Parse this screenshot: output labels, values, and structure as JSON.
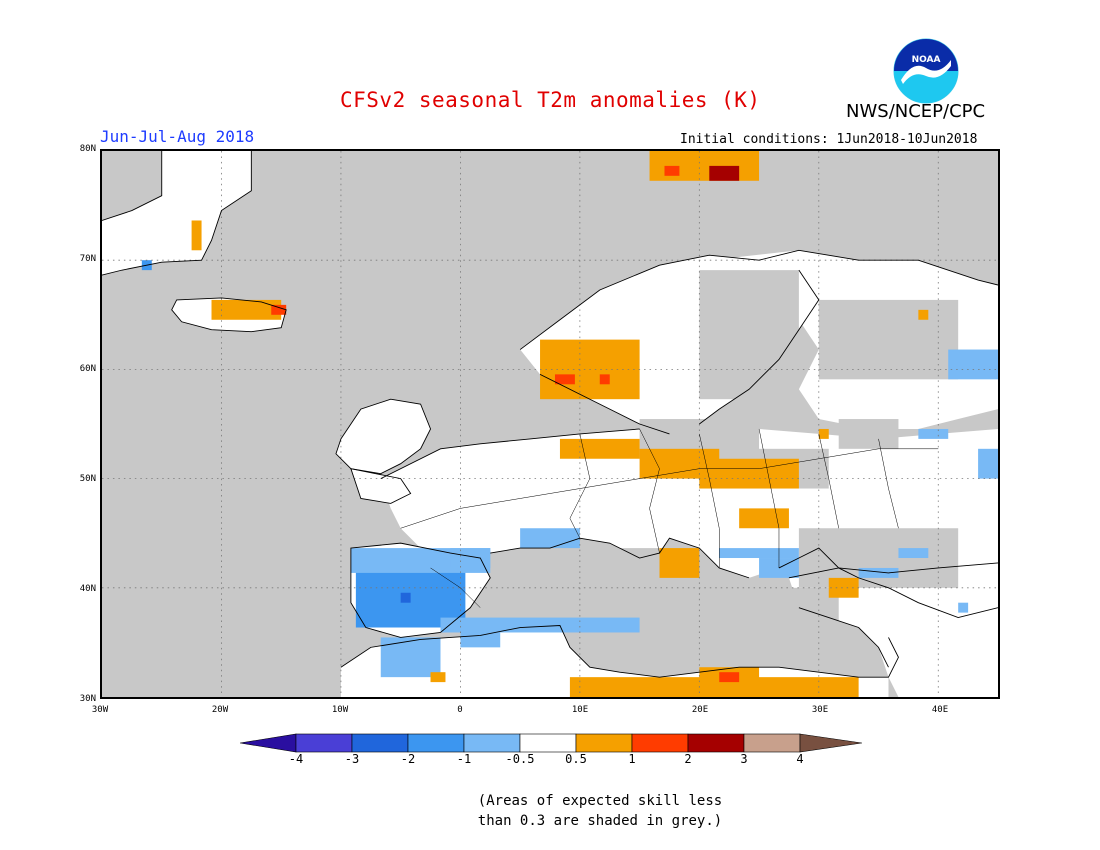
{
  "title": "CFSv2 seasonal T2m anomalies (K)",
  "period": "Jun-Jul-Aug 2018",
  "initial_conditions": "Initial conditions: 1Jun2018-10Jun2018",
  "agency": "NWS/NCEP/CPC",
  "logo_text": "NOAA",
  "note_line1": "(Areas of expected skill less",
  "note_line2": "than 0.3 are shaded in grey.)",
  "lat_labels": [
    "80N",
    "70N",
    "60N",
    "50N",
    "40N",
    "30N"
  ],
  "lon_labels": [
    "30W",
    "20W",
    "10W",
    "0",
    "10E",
    "20E",
    "30E",
    "40E"
  ],
  "colorbar_labels": [
    "-4",
    "-3",
    "-2",
    "-1",
    "-0.5",
    "0.5",
    "1",
    "2",
    "3",
    "4"
  ],
  "colors": {
    "title": "#e00000",
    "period": "#1e3cff",
    "no_skill_grey": "#c8c8c8",
    "neutral": "#ffffff",
    "scale": [
      "#2a0fa0",
      "#4a3fd6",
      "#2066dc",
      "#3c96f0",
      "#78b9f5",
      "#ffffff",
      "#f5a000",
      "#ff3c00",
      "#a50000",
      "#c8a08c",
      "#785040"
    ]
  },
  "map": {
    "lon_range": [
      -30,
      45
    ],
    "lat_range": [
      30,
      80
    ],
    "graticule_step_deg": 10,
    "anomaly_regions": [
      {
        "name": "iberia-cool",
        "category": "-2 to -1",
        "color": "#3c96f0"
      },
      {
        "name": "north-africa-cool",
        "category": "-1 to -0.5",
        "color": "#78b9f5"
      },
      {
        "name": "scandinavia-warm",
        "category": "0.5 to 1",
        "color": "#f5a000"
      },
      {
        "name": "central-europe-warm",
        "category": "0.5 to 1",
        "color": "#f5a000"
      },
      {
        "name": "libya-egypt-coast-warm",
        "category": "0.5 to 1",
        "color": "#f5a000"
      },
      {
        "name": "svalbard-warm",
        "category": "1 to 3",
        "color": "#a50000"
      }
    ]
  }
}
